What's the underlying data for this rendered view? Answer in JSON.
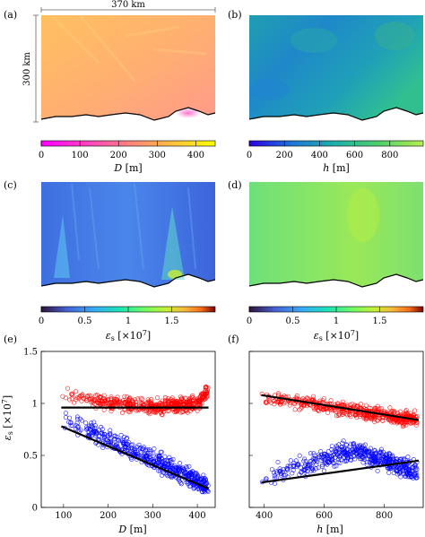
{
  "panels": {
    "a": {
      "tag": "(a)",
      "scale_x": "370 km",
      "scale_y": "300 km"
    },
    "b": {
      "tag": "(b)"
    },
    "c": {
      "tag": "(c)"
    },
    "d": {
      "tag": "(d)"
    },
    "e": {
      "tag": "(e)"
    },
    "f": {
      "tag": "(f)"
    }
  },
  "colorbars": {
    "a": {
      "colormap": "spring-pink-yellow",
      "ticks": [
        "0",
        "100",
        "200",
        "300",
        "400"
      ],
      "min": 0,
      "max": 450,
      "label_var": "D",
      "label_unit": " [m]"
    },
    "b": {
      "colormap": "viridis",
      "ticks": [
        "0",
        "200",
        "400",
        "600",
        "800"
      ],
      "min": 0,
      "max": 990,
      "label_var": "h",
      "label_unit": " [m]"
    },
    "c": {
      "colormap": "turbo",
      "ticks": [
        "0",
        "0.5",
        "1",
        "1.5"
      ],
      "min": 0,
      "max": 2.0,
      "label_var": "ε",
      "label_sub": "s",
      "label_unit": " [×10",
      "label_exp": "7",
      "label_close": "]"
    },
    "d": {
      "colormap": "turbo",
      "ticks": [
        "0",
        "0.5",
        "1",
        "1.5"
      ],
      "min": 0,
      "max": 2.0,
      "label_var": "ε",
      "label_sub": "s",
      "label_unit": " [×10",
      "label_exp": "7",
      "label_close": "]"
    }
  },
  "chart_data": [
    {
      "panel": "e",
      "type": "scatter",
      "xlabel_var": "D",
      "xlabel_unit": " [m]",
      "ylabel_var": "ε",
      "ylabel_sub": "s",
      "ylabel_unit": " [×10",
      "ylabel_exp": "7",
      "ylabel_close": "]",
      "xlim": [
        50,
        440
      ],
      "ylim": [
        0,
        1.5
      ],
      "xticks": [
        100,
        200,
        300,
        400
      ],
      "yticks": [
        0,
        0.5,
        1,
        1.5
      ],
      "xtick_labels": [
        "100",
        "200",
        "300",
        "400"
      ],
      "ytick_labels": [
        "0",
        "0.5",
        "1",
        "1.5"
      ],
      "series": [
        {
          "color": "#ff0000",
          "fit": [
            [
              95,
              0.96
            ],
            [
              425,
              0.96
            ]
          ],
          "cloud": {
            "x": [
              90,
              425
            ],
            "center": [
              [
                100,
                1.1
              ],
              [
                200,
                1.0
              ],
              [
                300,
                0.97
              ],
              [
                400,
                1.0
              ],
              [
                420,
                1.1
              ]
            ],
            "spread": 0.1
          }
        },
        {
          "color": "#0000ff",
          "fit": [
            [
              95,
              0.78
            ],
            [
              425,
              0.18
            ]
          ],
          "cloud": {
            "x": [
              95,
              425
            ],
            "center": [
              [
                100,
                0.85
              ],
              [
                200,
                0.65
              ],
              [
                300,
                0.45
              ],
              [
                400,
                0.25
              ],
              [
                420,
                0.2
              ]
            ],
            "spread": 0.14
          }
        }
      ],
      "fit_color": "#000000"
    },
    {
      "panel": "f",
      "type": "scatter",
      "xlabel_var": "h",
      "xlabel_unit": " [m]",
      "xlim": [
        350,
        930
      ],
      "ylim": [
        0,
        1.5
      ],
      "xticks": [
        400,
        600,
        800
      ],
      "yticks": [
        0,
        0.5,
        1,
        1.5
      ],
      "xtick_labels": [
        "400",
        "600",
        "800"
      ],
      "ytick_labels": [],
      "series": [
        {
          "color": "#ff0000",
          "fit": [
            [
              390,
              1.08
            ],
            [
              915,
              0.84
            ]
          ],
          "cloud": {
            "x": [
              385,
              910
            ],
            "center": [
              [
                400,
                1.05
              ],
              [
                550,
                1.0
              ],
              [
                700,
                0.92
              ],
              [
                850,
                0.87
              ],
              [
                900,
                0.85
              ]
            ],
            "spread": 0.1
          }
        },
        {
          "color": "#0000ff",
          "fit": [
            [
              390,
              0.24
            ],
            [
              915,
              0.45
            ]
          ],
          "cloud": {
            "x": [
              390,
              910
            ],
            "center": [
              [
                400,
                0.28
              ],
              [
                550,
                0.42
              ],
              [
                700,
                0.55
              ],
              [
                800,
                0.45
              ],
              [
                900,
                0.35
              ]
            ],
            "spread": 0.14
          }
        }
      ],
      "fit_color": "#000000"
    }
  ]
}
